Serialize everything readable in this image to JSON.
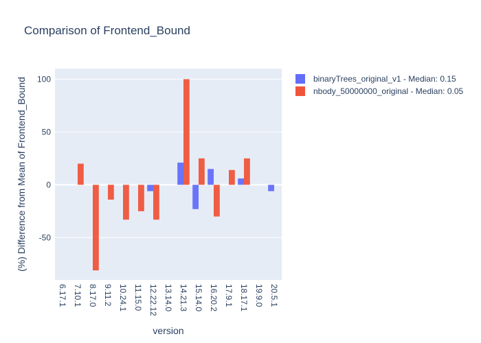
{
  "chart_data": {
    "type": "bar",
    "title": "Comparison of Frontend_Bound",
    "xlabel": "version",
    "ylabel": "(%) Difference from Mean of Frontend_Bound",
    "categories": [
      "6.17.1",
      "7.10.1",
      "8.17.0",
      "9.11.2",
      "10.24.1",
      "11.15.0",
      "12.22.12",
      "13.14.0",
      "14.21.3",
      "15.14.0",
      "16.20.2",
      "17.9.1",
      "18.17.1",
      "19.9.0",
      "20.5.1"
    ],
    "yticks": [
      -50,
      0,
      50,
      100
    ],
    "ylim": [
      -90,
      110
    ],
    "grid": true,
    "legend_position": "top-right",
    "series": [
      {
        "name": "binaryTrees_original_v1 - Median: 0.15",
        "color": "#636efa",
        "values": [
          null,
          null,
          null,
          null,
          null,
          null,
          -6,
          null,
          21,
          -23,
          15,
          null,
          6,
          null,
          -6
        ]
      },
      {
        "name": "nbody_50000000_original - Median: 0.05",
        "color": "#ef553b",
        "values": [
          null,
          20,
          -81,
          -14,
          -33,
          -25,
          -33,
          null,
          100,
          25,
          -30,
          14,
          25,
          null,
          null
        ]
      }
    ]
  }
}
